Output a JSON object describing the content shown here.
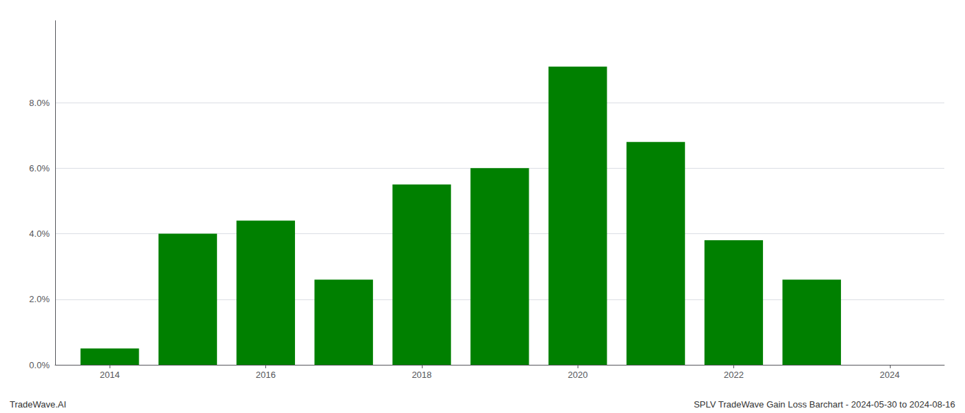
{
  "chart_data": {
    "type": "bar",
    "x": [
      2014,
      2015,
      2016,
      2017,
      2018,
      2019,
      2020,
      2021,
      2022,
      2023
    ],
    "values": [
      0.005,
      0.04,
      0.044,
      0.026,
      0.055,
      0.06,
      0.091,
      0.068,
      0.038,
      0.026
    ],
    "color": "#008000",
    "xlim": [
      2013.3,
      2024.7
    ],
    "xticks": [
      2014,
      2016,
      2018,
      2020,
      2022,
      2024
    ],
    "ylim": [
      0,
      0.105
    ],
    "yticks": [
      {
        "value": 0.0,
        "label": "0.0%"
      },
      {
        "value": 0.02,
        "label": "2.0%"
      },
      {
        "value": 0.04,
        "label": "4.0%"
      },
      {
        "value": 0.06,
        "label": "6.0%"
      },
      {
        "value": 0.08,
        "label": "8.0%"
      }
    ],
    "grid": true,
    "annotations": [
      "TradeWave.AI",
      "SPLV TradeWave Gain Loss Barchart - 2024-05-30 to 2024-08-16"
    ]
  }
}
